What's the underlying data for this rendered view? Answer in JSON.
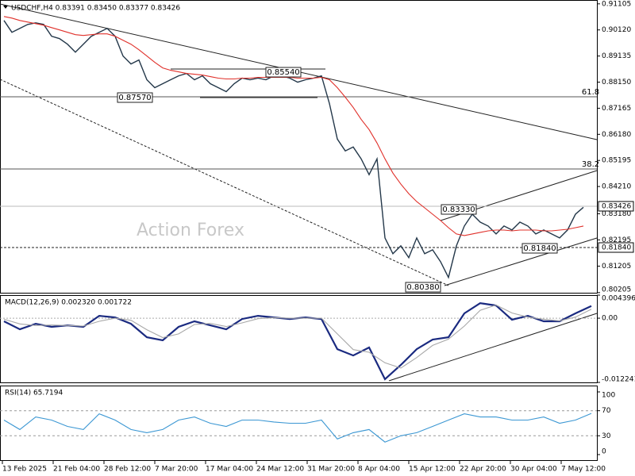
{
  "chart_data": [
    {
      "type": "line",
      "title": "USDCHF,H4  0.83391 0.83450 0.83377 0.83426",
      "watermark": "Action Forex",
      "annotations": [
        "0.85540",
        "0.87570",
        "0.83330",
        "0.81840",
        "0.80380",
        "61.8",
        "38.2"
      ],
      "axis_labels": [
        "0.83426",
        "0.81840"
      ],
      "ylim": [
        0.802,
        0.9122
      ],
      "yticks": [
        0.91105,
        {
          "value": 0.9012,
          "label": "0.90120"
        },
        0.89135,
        {
          "value": 0.8815,
          "label": "0.88150"
        },
        0.87165,
        {
          "value": 0.8618,
          "label": "0.86180"
        },
        0.85195,
        {
          "value": 0.8421,
          "label": "0.84210"
        },
        {
          "value": 0.8318,
          "label": "0.83180"
        },
        0.82195,
        0.81205,
        0.80205
      ],
      "series": [
        {
          "color": "#24384a",
          "values": [
            0.90478,
            0.9003,
            0.90179,
            0.90329,
            0.90388,
            0.90329,
            0.89881,
            0.89791,
            0.89582,
            0.89284,
            0.89582,
            0.89881,
            0.9003,
            0.90179,
            0.89881,
            0.89135,
            0.88836,
            0.88985,
            0.88239,
            0.87941,
            0.8809,
            0.88239,
            0.88388,
            0.88478,
            0.88239,
            0.88388,
            0.8809,
            0.87941,
            0.87791,
            0.8809,
            0.88299,
            0.88239,
            0.88299,
            0.88239,
            0.88388,
            0.88388,
            0.88299,
            0.88149,
            0.88239,
            0.88299,
            0.88388,
            0.87344,
            0.86,
            0.85553,
            0.85702,
            0.85254,
            0.84657,
            0.85254,
            0.82269,
            0.81672,
            0.81971,
            0.81523,
            0.82269,
            0.81672,
            0.81821,
            0.81374,
            0.80777,
            0.81971,
            0.82717,
            0.83165,
            0.82866,
            0.82717,
            0.82418,
            0.82717,
            0.82568,
            0.82866,
            0.82717,
            0.82418,
            0.82568,
            0.82418,
            0.82269,
            0.82568,
            0.83165,
            0.83426
          ]
        },
        {
          "color": "#e0302a",
          "values": [
            0.90627,
            0.90567,
            0.90478,
            0.90418,
            0.90358,
            0.90299,
            0.90209,
            0.9012,
            0.9003,
            0.89941,
            0.89911,
            0.89941,
            0.8997,
            0.8997,
            0.89881,
            0.89732,
            0.89582,
            0.89373,
            0.89135,
            0.88896,
            0.88687,
            0.88597,
            0.88538,
            0.88478,
            0.88448,
            0.88418,
            0.88358,
            0.88299,
            0.88269,
            0.88269,
            0.88299,
            0.88299,
            0.88329,
            0.88329,
            0.88329,
            0.88329,
            0.88329,
            0.88299,
            0.88299,
            0.88299,
            0.88329,
            0.88239,
            0.87941,
            0.87582,
            0.87194,
            0.86747,
            0.86359,
            0.85851,
            0.85254,
            0.84717,
            0.84299,
            0.83941,
            0.83642,
            0.83403,
            0.83165,
            0.82926,
            0.82657,
            0.82418,
            0.82359,
            0.82418,
            0.82478,
            0.82537,
            0.82567,
            0.82567,
            0.82537,
            0.82567,
            0.82567,
            0.82567,
            0.82537,
            0.82537,
            0.82567,
            0.82597,
            0.82657,
            0.82717
          ]
        }
      ]
    },
    {
      "type": "line",
      "title": "MACD(12,26,9) 0.002320 0.001722",
      "ylim": [
        -0.012241,
        0.004396
      ],
      "yticks": [
        0.004396,
        {
          "value": 0,
          "label": "0.00"
        },
        -0.012241
      ],
      "series": [
        {
          "color": "#1a2a80",
          "values": [
            -0.0006,
            -0.00212,
            -0.00106,
            -0.00166,
            -0.00136,
            -0.00166,
            0.00045,
            0.00015,
            -0.00106,
            -0.00363,
            -0.00423,
            -0.00166,
            -0.0006,
            -0.00136,
            -0.00212,
            -0.00015,
            0.00045,
            0.00015,
            -0.00015,
            0.00015,
            -0.00015,
            -0.0059,
            -0.00711,
            -0.00559,
            -0.01164,
            -0.00892,
            -0.0059,
            -0.00408,
            -0.00363,
            0.00091,
            0.00287,
            0.00242,
            -0.0003,
            0.00045,
            -0.0006,
            -0.0006,
            0.00091,
            0.00232
          ]
        },
        {
          "color": "#a8a8a8",
          "values": [
            -0.0002,
            -0.0011,
            -0.0014,
            -0.0013,
            -0.0014,
            -0.0015,
            -0.0006,
            0,
            -0.0004,
            -0.0022,
            -0.0037,
            -0.003,
            -0.0012,
            -0.001,
            -0.0016,
            -0.0009,
            -0.0001,
            0.0001,
            0,
            0,
            0,
            -0.003,
            -0.006,
            -0.0065,
            -0.0085,
            -0.0095,
            -0.0075,
            -0.0052,
            -0.004,
            -0.0015,
            0.0015,
            0.0025,
            0.001,
            0.0002,
            -0.0002,
            -0.0005,
            0.0002,
            0.001722
          ]
        }
      ]
    },
    {
      "type": "line",
      "title": "RSI(14) 65.7194",
      "ylim": [
        0,
        100
      ],
      "yticks": [
        100,
        70,
        30,
        0
      ],
      "levels": [
        70,
        30
      ],
      "xticks": [
        "13 Feb 2025",
        "21 Feb 04:00",
        "28 Feb 12:00",
        "7 Mar 20:00",
        "17 Mar 04:00",
        "24 Mar 12:00",
        "31 Mar 20:00",
        "8 Apr 04:00",
        "15 Apr 12:00",
        "22 Apr 20:00",
        "30 Apr 04:00",
        "7 May 12:00"
      ],
      "series": [
        {
          "color": "#3b97d3",
          "values": [
            55,
            40,
            60,
            55,
            45,
            40,
            65,
            55,
            40,
            35,
            40,
            55,
            60,
            50,
            45,
            55,
            55,
            52,
            50,
            50,
            55,
            25,
            35,
            40,
            20,
            30,
            35,
            45,
            55,
            65,
            60,
            60,
            55,
            55,
            60,
            50,
            55,
            65.7194
          ]
        }
      ]
    }
  ]
}
